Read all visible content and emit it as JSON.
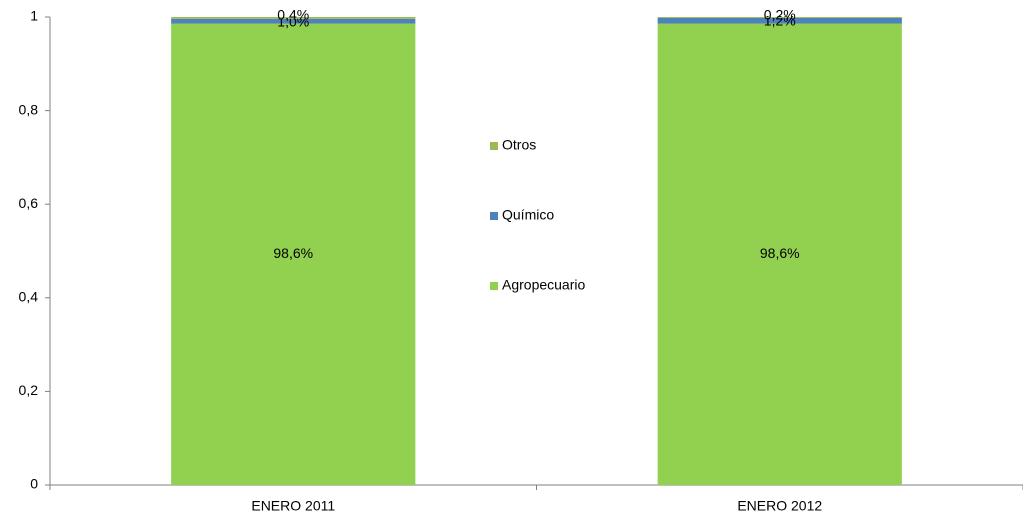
{
  "chart_data": {
    "type": "stacked_bar",
    "categories": [
      "ENERO 2011",
      "ENERO 2012"
    ],
    "series": [
      {
        "name": "Agropecuario",
        "color": "#92d050",
        "values": [
          0.986,
          0.986
        ],
        "value_labels": [
          "98,6%",
          "98,6%"
        ]
      },
      {
        "name": "Químico",
        "color": "#4f81bd",
        "values": [
          0.01,
          0.012
        ],
        "value_labels": [
          "1,0%",
          "1,2%"
        ]
      },
      {
        "name": "Otros",
        "color": "#9bbb59",
        "values": [
          0.004,
          0.002
        ],
        "value_labels": [
          "0,4%",
          "0,2%"
        ]
      }
    ],
    "ylim": [
      0,
      1
    ],
    "yticks": [
      0,
      {
        "value": 0.2,
        "label": "0,2"
      },
      {
        "value": 0.4,
        "label": "0,4"
      },
      {
        "value": 0.6,
        "label": "0,6"
      },
      {
        "value": 0.8,
        "label": "0,8"
      },
      1
    ]
  }
}
